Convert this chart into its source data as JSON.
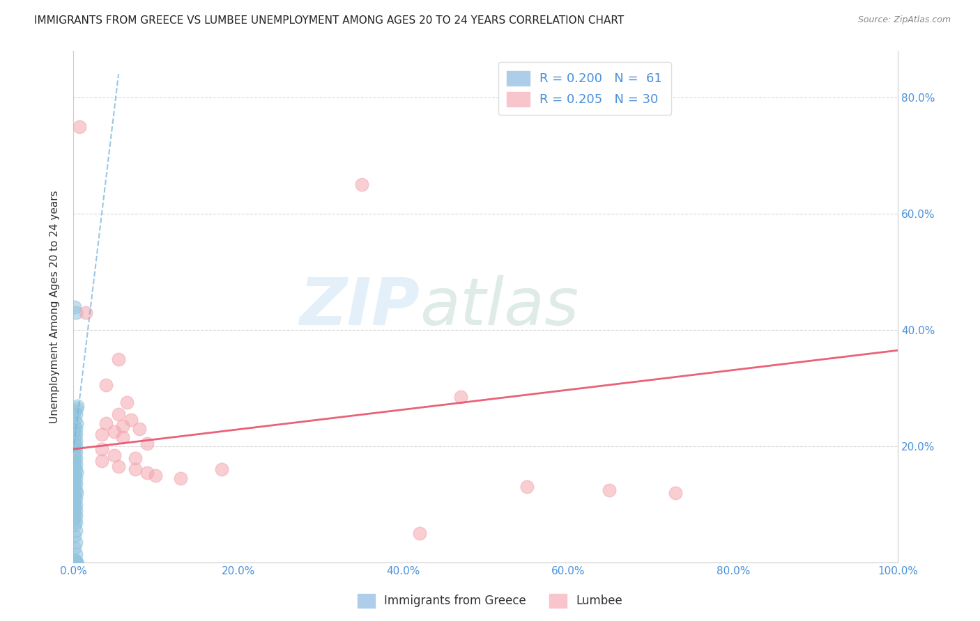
{
  "title": "IMMIGRANTS FROM GREECE VS LUMBEE UNEMPLOYMENT AMONG AGES 20 TO 24 YEARS CORRELATION CHART",
  "source": "Source: ZipAtlas.com",
  "ylabel": "Unemployment Among Ages 20 to 24 years",
  "xlim": [
    0,
    1.0
  ],
  "ylim": [
    0,
    0.88
  ],
  "xtick_vals": [
    0.0,
    0.2,
    0.4,
    0.6,
    0.8,
    1.0
  ],
  "xtick_labels": [
    "0.0%",
    "20.0%",
    "40.0%",
    "60.0%",
    "80.0%",
    "100.0%"
  ],
  "ytick_vals": [
    0.2,
    0.4,
    0.6,
    0.8
  ],
  "ytick_labels": [
    "20.0%",
    "40.0%",
    "60.0%",
    "80.0%"
  ],
  "blue_color": "#92c5de",
  "pink_color": "#f4a6b0",
  "blue_scatter": [
    [
      0.002,
      0.44
    ],
    [
      0.003,
      0.43
    ],
    [
      0.005,
      0.27
    ],
    [
      0.004,
      0.265
    ],
    [
      0.002,
      0.26
    ],
    [
      0.003,
      0.255
    ],
    [
      0.002,
      0.245
    ],
    [
      0.004,
      0.24
    ],
    [
      0.002,
      0.235
    ],
    [
      0.003,
      0.23
    ],
    [
      0.002,
      0.225
    ],
    [
      0.003,
      0.22
    ],
    [
      0.002,
      0.215
    ],
    [
      0.003,
      0.21
    ],
    [
      0.002,
      0.205
    ],
    [
      0.003,
      0.2
    ],
    [
      0.002,
      0.195
    ],
    [
      0.003,
      0.19
    ],
    [
      0.002,
      0.185
    ],
    [
      0.003,
      0.18
    ],
    [
      0.002,
      0.175
    ],
    [
      0.003,
      0.17
    ],
    [
      0.002,
      0.165
    ],
    [
      0.003,
      0.16
    ],
    [
      0.004,
      0.155
    ],
    [
      0.002,
      0.15
    ],
    [
      0.003,
      0.145
    ],
    [
      0.002,
      0.14
    ],
    [
      0.003,
      0.135
    ],
    [
      0.002,
      0.13
    ],
    [
      0.003,
      0.125
    ],
    [
      0.004,
      0.12
    ],
    [
      0.002,
      0.115
    ],
    [
      0.003,
      0.11
    ],
    [
      0.002,
      0.105
    ],
    [
      0.003,
      0.1
    ],
    [
      0.002,
      0.095
    ],
    [
      0.003,
      0.09
    ],
    [
      0.002,
      0.085
    ],
    [
      0.003,
      0.08
    ],
    [
      0.002,
      0.075
    ],
    [
      0.003,
      0.07
    ],
    [
      0.002,
      0.065
    ],
    [
      0.003,
      0.055
    ],
    [
      0.002,
      0.045
    ],
    [
      0.003,
      0.035
    ],
    [
      0.002,
      0.025
    ],
    [
      0.003,
      0.015
    ],
    [
      0.002,
      0.005
    ],
    [
      0.003,
      0.003
    ],
    [
      0.002,
      0.0
    ],
    [
      0.003,
      0.0
    ],
    [
      0.004,
      0.0
    ],
    [
      0.002,
      0.0
    ],
    [
      0.003,
      0.0
    ],
    [
      0.004,
      0.0
    ],
    [
      0.002,
      0.0
    ],
    [
      0.003,
      0.0
    ],
    [
      0.002,
      0.0
    ],
    [
      0.003,
      0.0
    ],
    [
      0.004,
      0.0
    ]
  ],
  "pink_scatter": [
    [
      0.008,
      0.75
    ],
    [
      0.35,
      0.65
    ],
    [
      0.015,
      0.43
    ],
    [
      0.055,
      0.35
    ],
    [
      0.04,
      0.305
    ],
    [
      0.065,
      0.275
    ],
    [
      0.055,
      0.255
    ],
    [
      0.07,
      0.245
    ],
    [
      0.04,
      0.24
    ],
    [
      0.06,
      0.235
    ],
    [
      0.08,
      0.23
    ],
    [
      0.05,
      0.225
    ],
    [
      0.035,
      0.22
    ],
    [
      0.06,
      0.215
    ],
    [
      0.09,
      0.205
    ],
    [
      0.035,
      0.195
    ],
    [
      0.05,
      0.185
    ],
    [
      0.075,
      0.18
    ],
    [
      0.035,
      0.175
    ],
    [
      0.055,
      0.165
    ],
    [
      0.075,
      0.16
    ],
    [
      0.09,
      0.155
    ],
    [
      0.1,
      0.15
    ],
    [
      0.13,
      0.145
    ],
    [
      0.18,
      0.16
    ],
    [
      0.47,
      0.285
    ],
    [
      0.55,
      0.13
    ],
    [
      0.65,
      0.125
    ],
    [
      0.73,
      0.12
    ],
    [
      0.42,
      0.05
    ]
  ],
  "blue_line_x": [
    0.0,
    0.055
  ],
  "blue_line_y": [
    0.19,
    0.84
  ],
  "pink_line_x": [
    0.0,
    1.0
  ],
  "pink_line_y": [
    0.195,
    0.365
  ],
  "watermark_zip": "ZIP",
  "watermark_atlas": "atlas",
  "bg_color": "#ffffff",
  "grid_color": "#d0d0d0",
  "trend_blue_color": "#7ab3d9",
  "trend_pink_color": "#e8506a"
}
